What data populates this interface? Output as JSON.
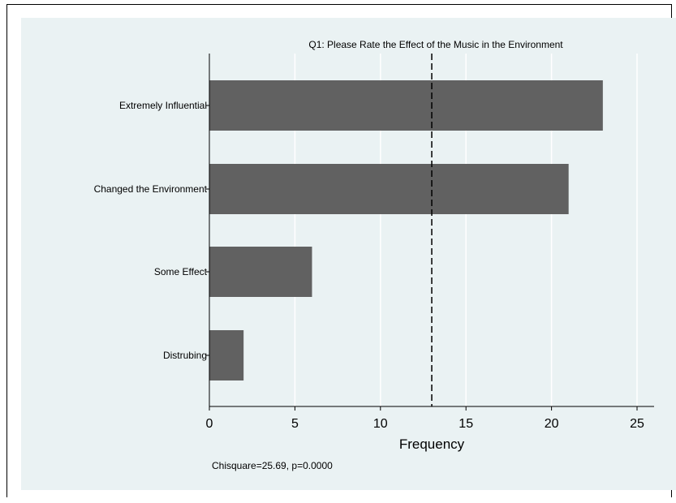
{
  "chart_data": {
    "type": "bar",
    "orientation": "horizontal",
    "title": "Q1: Please Rate the Effect of the Music in the Environment",
    "categories": [
      "Extremely Influential",
      "Changed the Environment",
      "Some Effect",
      "Distrubing"
    ],
    "values": [
      23,
      21,
      6,
      2
    ],
    "xlabel": "Frequency",
    "ylabel": "",
    "xlim": [
      0,
      26
    ],
    "xticks": [
      0,
      5,
      10,
      15,
      20,
      25
    ],
    "reference_line": {
      "x": 13,
      "style": "dashed"
    },
    "grid": true,
    "note": "Chisquare=25.69, p=0.0000",
    "colors": {
      "bar": "#616161",
      "background": "#eaf2f3",
      "grid": "#ffffff",
      "refline": "#000000"
    }
  }
}
